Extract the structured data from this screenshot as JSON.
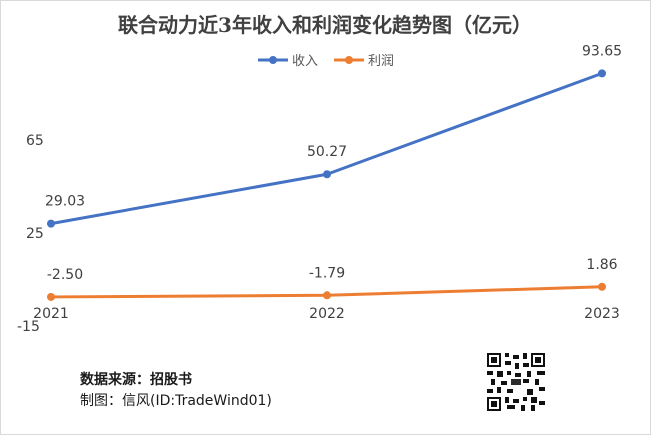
{
  "chart_data": {
    "type": "line",
    "title": "联合动力近3年收入和利润变化趋势图（亿元）",
    "categories": [
      "2021",
      "2022",
      "2023"
    ],
    "y_ticks": [
      65,
      25,
      -15
    ],
    "ylim": [
      -15,
      95
    ],
    "legend_position": "top",
    "grid": false,
    "series": [
      {
        "name": "收入",
        "color": "#4472c4",
        "values": [
          29.03,
          50.27,
          93.65
        ],
        "labels": [
          "29.03",
          "50.27",
          "93.65"
        ]
      },
      {
        "name": "利润",
        "color": "#ed7d31",
        "values": [
          -2.5,
          -1.79,
          1.86
        ],
        "labels": [
          "-2.50",
          "-1.79",
          "1.86"
        ]
      }
    ]
  },
  "footer": {
    "source": "数据来源：招股书",
    "credit": "制图：信风(ID:TradeWind01)"
  },
  "qr": {
    "icon": "qr-code-icon"
  }
}
